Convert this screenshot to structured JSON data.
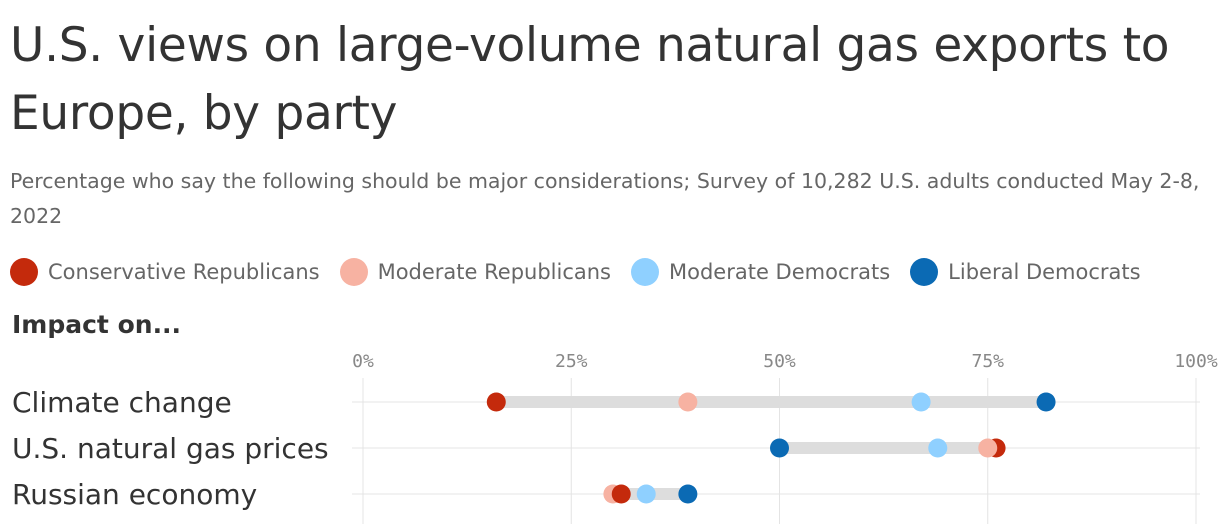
{
  "title": "U.S. views on large-volume natural gas exports to Europe, by party",
  "subtitle": "Percentage who say the following should be major considerations; Survey of 10,282 U.S. adults conducted May 2-8, 2022",
  "section_label": "Impact on...",
  "legend": [
    {
      "label": "Conservative Republicans",
      "color": "#c42a0c"
    },
    {
      "label": "Moderate Republicans",
      "color": "#f7b2a2"
    },
    {
      "label": "Moderate Democrats",
      "color": "#8fd0ff"
    },
    {
      "label": "Liberal Democrats",
      "color": "#0b6ab4"
    }
  ],
  "chart_data": {
    "type": "dot",
    "title": "U.S. views on large-volume natural gas exports to Europe, by party",
    "xlim": [
      0,
      100
    ],
    "x_ticks": [
      "0%",
      "25%",
      "50%",
      "75%",
      "100%"
    ],
    "grid": true,
    "legend_position": "top",
    "categories": [
      "Climate change",
      "U.S. natural gas prices",
      "Russian economy"
    ],
    "series": [
      {
        "name": "Conservative Republicans",
        "color": "#c42a0c",
        "values": [
          16,
          76,
          31
        ]
      },
      {
        "name": "Moderate Republicans",
        "color": "#f7b2a2",
        "values": [
          39,
          75,
          30
        ]
      },
      {
        "name": "Moderate Democrats",
        "color": "#8fd0ff",
        "values": [
          67,
          69,
          34
        ]
      },
      {
        "name": "Liberal Democrats",
        "color": "#0b6ab4",
        "values": [
          82,
          50,
          39
        ]
      }
    ]
  }
}
